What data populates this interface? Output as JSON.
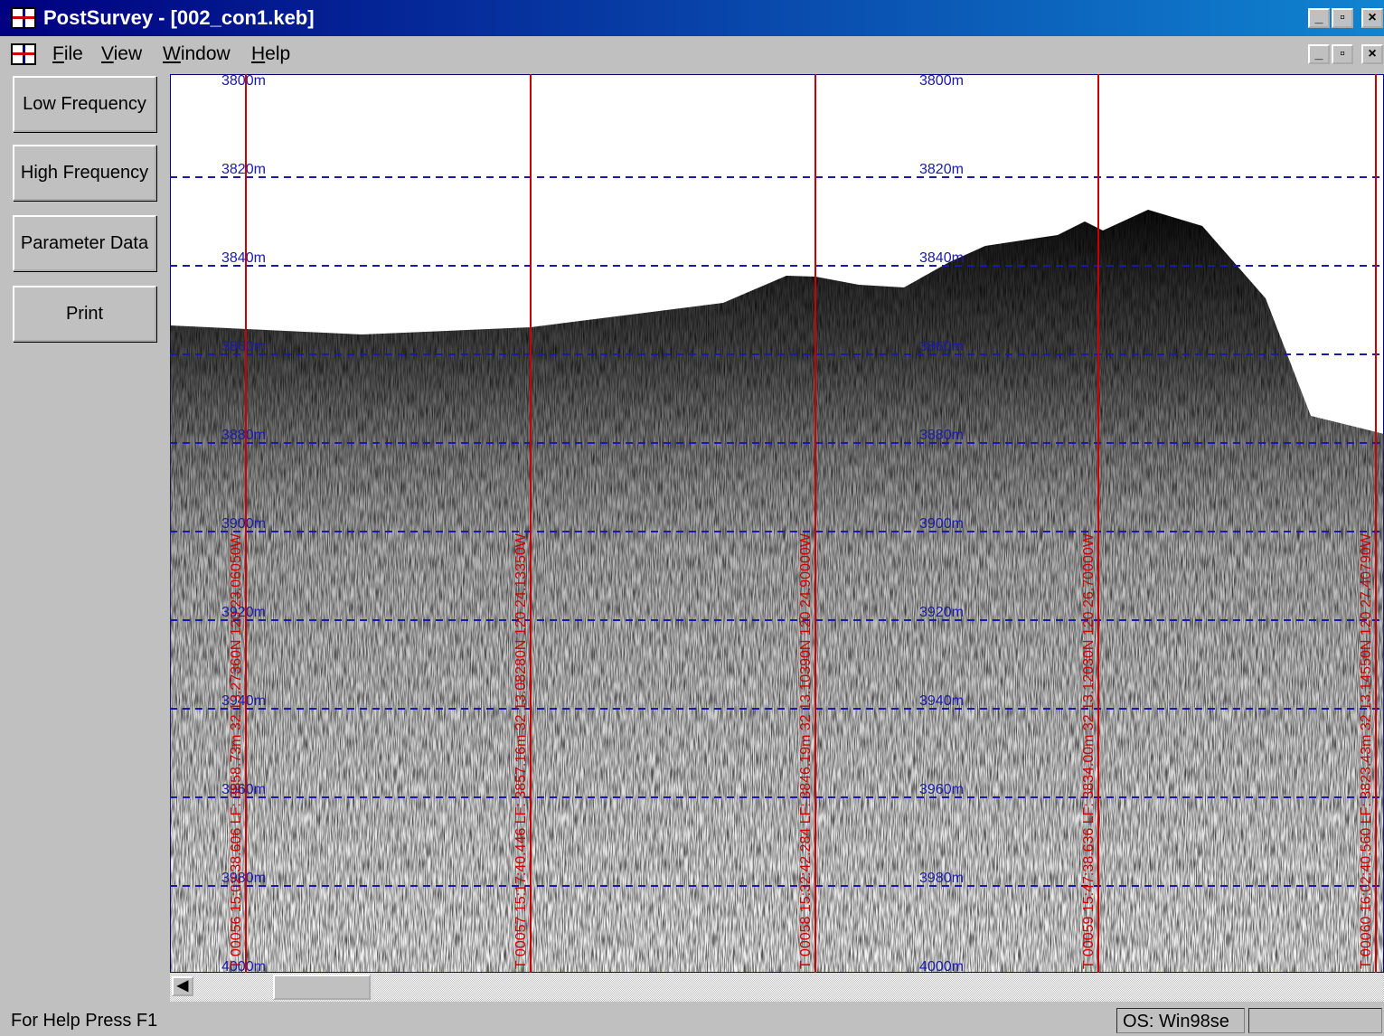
{
  "window": {
    "title": "PostSurvey - [002_con1.keb]"
  },
  "menu": [
    "File",
    "View",
    "Window",
    "Help"
  ],
  "buttons": [
    "Low Frequency",
    "High Frequency",
    "Parameter Data",
    "Print"
  ],
  "plot": {
    "depth_labels": [
      "3800m",
      "3820m",
      "3840m",
      "3860m",
      "3880m",
      "3900m",
      "3920m",
      "3940m",
      "3960m",
      "3980m",
      "4000m"
    ],
    "markers": [
      "T 00056 15:02:38.606 LF: 3858.73m 32 13.27360N 120 23.06050W",
      "T 00057 15:17:40.446 LF: 3857.16m 32 13.08280N 120 24.13350W",
      "T 00058 15:32:42.284 LF: 3846.19m 32 13.10390N 120 24.90000W",
      "T 00059 15:47:38.636 LF: 3834.00m 32 13.12030N 120 26.70000W",
      "T 00060 16:02:40.560 LF: 3823.43m 32 13.14550N 120 27.40790W"
    ]
  },
  "status": {
    "help": "For Help Press F1",
    "os": "OS: Win98se"
  }
}
